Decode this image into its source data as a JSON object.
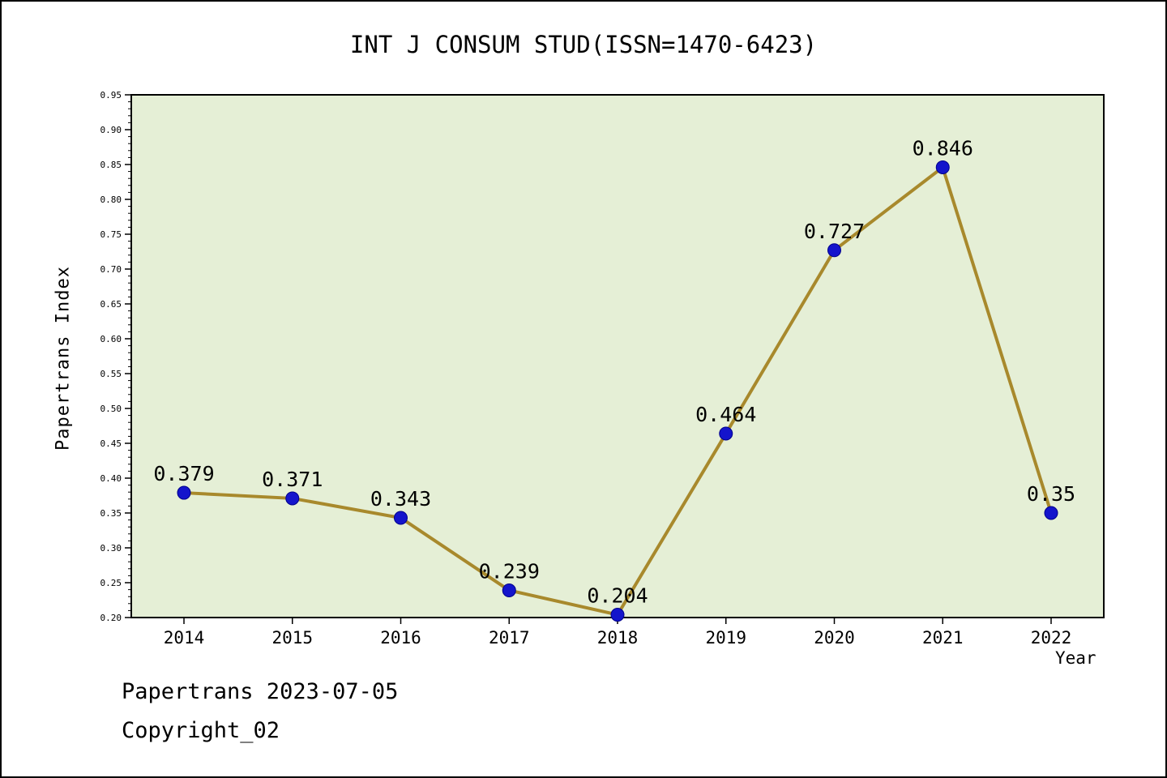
{
  "page": {
    "footer_line1": "Papertrans 2023-07-05",
    "footer_line2": "Copyright_02"
  },
  "chart_data": {
    "type": "line",
    "title": "INT J CONSUM STUD(ISSN=1470-6423)",
    "xlabel": "Year",
    "ylabel": "Papertrans Index",
    "categories": [
      "2014",
      "2015",
      "2016",
      "2017",
      "2018",
      "2019",
      "2020",
      "2021",
      "2022"
    ],
    "values": [
      0.379,
      0.371,
      0.343,
      0.239,
      0.204,
      0.464,
      0.727,
      0.846,
      0.35
    ],
    "point_labels": [
      "0.379",
      "0.371",
      "0.343",
      "0.239",
      "0.204",
      "0.464",
      "0.727",
      "0.846",
      "0.35"
    ],
    "ylim": [
      0.2,
      0.95
    ],
    "ytick_step": 0.05,
    "ytick_minor_step": 0.01,
    "grid": false,
    "legend": "none",
    "colors": {
      "plot_bg": "#e5efd6",
      "line": "#a8892c",
      "marker": "#1414cc",
      "marker_edge": "#00008b",
      "frame": "#000000",
      "text": "#000000"
    }
  }
}
